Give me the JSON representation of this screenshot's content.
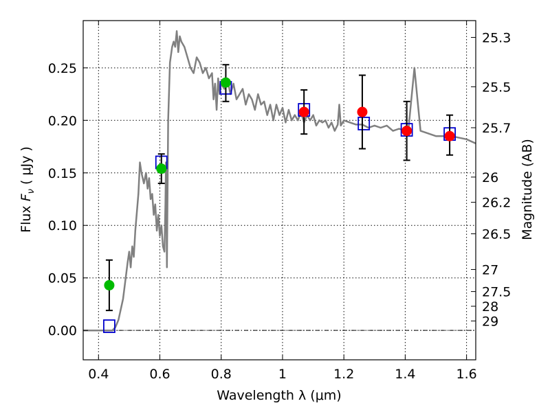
{
  "chart_data": {
    "type": "scatter",
    "xlabel": "Wavelength  λ (μm)",
    "ylabel_parts": [
      "Flux  ",
      "F",
      "ν",
      "  (  μJy  )"
    ],
    "ylabel_right": "Magnitude (AB)",
    "xlim": [
      0.35,
      1.63
    ],
    "ylim": [
      -0.028,
      0.295
    ],
    "x_ticks": [
      0.4,
      0.6,
      0.8,
      1.0,
      1.2,
      1.4,
      1.6
    ],
    "x_tick_labels": [
      "0.4",
      "0.6",
      "0.8",
      "1",
      "1.2",
      "1.4",
      "1.6"
    ],
    "y_ticks": [
      0.0,
      0.05,
      0.1,
      0.15,
      0.2,
      0.25
    ],
    "y_tick_labels": [
      "0.00",
      "0.05",
      "0.10",
      "0.15",
      "0.20",
      "0.25"
    ],
    "right_ticks": [
      {
        "label": "25.3",
        "flux": 0.279
      },
      {
        "label": "25.5",
        "flux": 0.232
      },
      {
        "label": "25.7",
        "flux": 0.193
      },
      {
        "label": "26",
        "flux": 0.146
      },
      {
        "label": "26.2",
        "flux": 0.122
      },
      {
        "label": "26.5",
        "flux": 0.092
      },
      {
        "label": "27",
        "flux": 0.058
      },
      {
        "label": "27.5",
        "flux": 0.037
      },
      {
        "label": "28",
        "flux": 0.023
      },
      {
        "label": "29",
        "flux": 0.009
      }
    ],
    "grid": true,
    "colors": {
      "model": "#808080",
      "model_points": "#0000cc",
      "optical": "#00bb00",
      "nir": "#ff0000",
      "errorbar": "#000000"
    },
    "model_spectrum": {
      "x": [
        0.35,
        0.42,
        0.445,
        0.455,
        0.465,
        0.48,
        0.495,
        0.5,
        0.505,
        0.51,
        0.515,
        0.52,
        0.53,
        0.535,
        0.54,
        0.548,
        0.555,
        0.56,
        0.565,
        0.57,
        0.575,
        0.58,
        0.585,
        0.59,
        0.595,
        0.6,
        0.605,
        0.61,
        0.615,
        0.618,
        0.62,
        0.623,
        0.627,
        0.633,
        0.64,
        0.645,
        0.65,
        0.655,
        0.66,
        0.665,
        0.67,
        0.68,
        0.69,
        0.7,
        0.71,
        0.72,
        0.73,
        0.74,
        0.75,
        0.76,
        0.77,
        0.775,
        0.78,
        0.785,
        0.79,
        0.795,
        0.8,
        0.81,
        0.82,
        0.83,
        0.84,
        0.85,
        0.86,
        0.87,
        0.88,
        0.89,
        0.9,
        0.91,
        0.92,
        0.93,
        0.94,
        0.95,
        0.96,
        0.97,
        0.98,
        0.99,
        1.0,
        1.01,
        1.02,
        1.03,
        1.04,
        1.05,
        1.06,
        1.07,
        1.08,
        1.09,
        1.1,
        1.11,
        1.12,
        1.13,
        1.14,
        1.15,
        1.16,
        1.17,
        1.18,
        1.185,
        1.19,
        1.2,
        1.22,
        1.24,
        1.26,
        1.28,
        1.3,
        1.32,
        1.34,
        1.36,
        1.38,
        1.4,
        1.41,
        1.42,
        1.43,
        1.44,
        1.45,
        1.47,
        1.5,
        1.55,
        1.6,
        1.63
      ],
      "y": [
        0.0,
        0.0,
        0.0,
        0.003,
        0.01,
        0.03,
        0.065,
        0.075,
        0.06,
        0.08,
        0.07,
        0.095,
        0.13,
        0.16,
        0.15,
        0.14,
        0.15,
        0.135,
        0.145,
        0.125,
        0.13,
        0.11,
        0.12,
        0.095,
        0.11,
        0.09,
        0.1,
        0.08,
        0.075,
        0.12,
        0.16,
        0.06,
        0.2,
        0.255,
        0.27,
        0.275,
        0.27,
        0.285,
        0.265,
        0.28,
        0.275,
        0.27,
        0.26,
        0.25,
        0.245,
        0.26,
        0.255,
        0.245,
        0.25,
        0.24,
        0.245,
        0.22,
        0.235,
        0.21,
        0.24,
        0.225,
        0.235,
        0.23,
        0.24,
        0.225,
        0.235,
        0.22,
        0.225,
        0.23,
        0.215,
        0.225,
        0.22,
        0.21,
        0.225,
        0.215,
        0.218,
        0.205,
        0.215,
        0.2,
        0.215,
        0.205,
        0.212,
        0.198,
        0.21,
        0.2,
        0.205,
        0.2,
        0.208,
        0.198,
        0.205,
        0.2,
        0.205,
        0.195,
        0.2,
        0.198,
        0.2,
        0.193,
        0.198,
        0.19,
        0.196,
        0.215,
        0.195,
        0.2,
        0.198,
        0.196,
        0.196,
        0.193,
        0.195,
        0.193,
        0.195,
        0.19,
        0.192,
        0.19,
        0.19,
        0.22,
        0.25,
        0.22,
        0.19,
        0.188,
        0.185,
        0.185,
        0.182,
        0.178
      ]
    },
    "series": [
      {
        "role": "model-bandpass",
        "marker": "square",
        "x": [
          0.435,
          0.605,
          0.815,
          1.07,
          1.265,
          1.405,
          1.545
        ],
        "y": [
          0.004,
          0.16,
          0.231,
          0.21,
          0.197,
          0.191,
          0.187
        ]
      },
      {
        "role": "optical-observed",
        "marker": "circle",
        "x": [
          0.435,
          0.605,
          0.815
        ],
        "y": [
          0.043,
          0.154,
          0.236
        ],
        "yerr_low": [
          0.019,
          0.14,
          0.218
        ],
        "yerr_high": [
          0.067,
          0.168,
          0.253
        ]
      },
      {
        "role": "nir-observed",
        "marker": "circle",
        "x": [
          1.07,
          1.26,
          1.405,
          1.545
        ],
        "y": [
          0.208,
          0.208,
          0.19,
          0.185
        ],
        "yerr_low": [
          0.187,
          0.173,
          0.162,
          0.167
        ],
        "yerr_high": [
          0.229,
          0.243,
          0.218,
          0.205
        ]
      }
    ]
  }
}
